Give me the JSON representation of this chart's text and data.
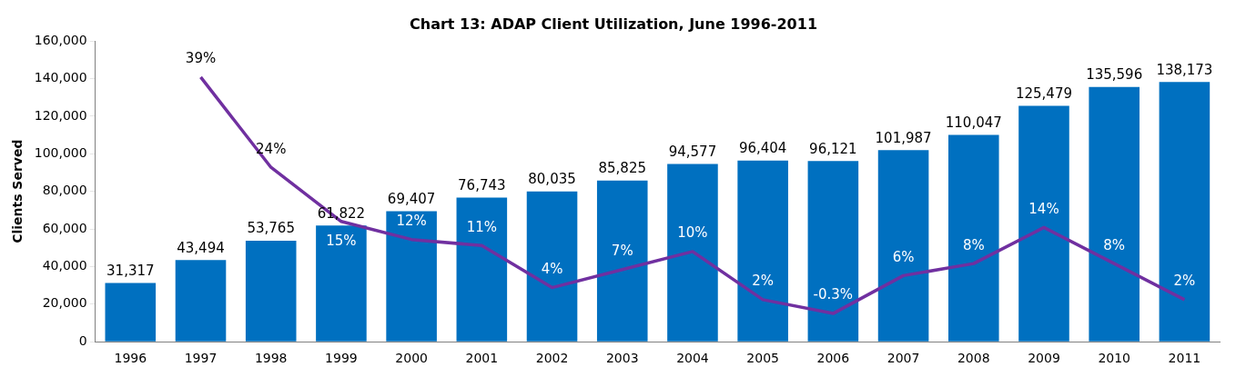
{
  "chart_data": {
    "type": "bar",
    "title": "Chart 13: ADAP Client Utilization, June 1996-2011",
    "ylabel": "Clients Served",
    "categories": [
      "1996",
      "1997",
      "1998",
      "1999",
      "2000",
      "2001",
      "2002",
      "2003",
      "2004",
      "2005",
      "2006",
      "2007",
      "2008",
      "2009",
      "2010",
      "2011"
    ],
    "series": [
      {
        "color": "#0070c0",
        "values": [
          31317,
          43494,
          53765,
          61822,
          69407,
          76743,
          80035,
          85825,
          94577,
          96404,
          96121,
          101987,
          110047,
          125479,
          135596,
          138173
        ],
        "value_labels": [
          "31,317",
          "43,494",
          "53,765",
          "61,822",
          "69,407",
          "76,743",
          "80,035",
          "85,825",
          "94,577",
          "96,404",
          "96,121",
          "101,987",
          "110,047",
          "125,479",
          "135,596",
          "138,173"
        ]
      },
      {
        "type": "line",
        "color": "#7030a0",
        "axis": "y2",
        "values": [
          null,
          39,
          24,
          15,
          12,
          11,
          4,
          7,
          10,
          2,
          -0.3,
          6,
          8,
          14,
          8,
          2
        ],
        "value_labels": [
          null,
          "39%",
          "24%",
          "15%",
          "12%",
          "11%",
          "4%",
          "7%",
          "10%",
          "2%",
          "-0.3%",
          "6%",
          "8%",
          "14%",
          "8%",
          "2%"
        ]
      }
    ],
    "ylim": [
      0,
      160000
    ],
    "yticks": [
      0,
      {
        "value": 20000,
        "label": "20,000"
      },
      {
        "value": 40000,
        "label": "40,000"
      },
      {
        "value": 60000,
        "label": "60,000"
      },
      {
        "value": 80000,
        "label": "80,000"
      },
      {
        "value": 100000,
        "label": "100,000"
      },
      {
        "value": 120000,
        "label": "120,000"
      },
      {
        "value": 140000,
        "label": "140,000"
      },
      {
        "value": 160000,
        "label": "160,000"
      }
    ],
    "y2lim": [
      -5,
      45
    ],
    "grid": false,
    "legend": false
  }
}
